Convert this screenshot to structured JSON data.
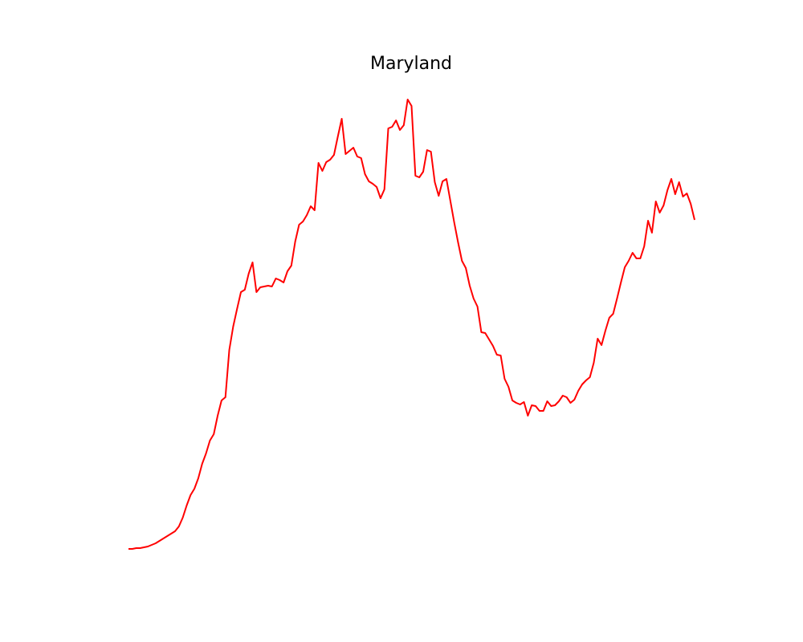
{
  "chart_data": {
    "type": "line",
    "title": "Maryland",
    "color": "#ff0000",
    "ylim": [
      0,
      608
    ],
    "values": [
      20,
      20,
      21,
      21,
      22,
      23,
      25,
      27,
      30,
      33,
      36,
      39,
      42,
      48,
      59,
      74,
      87,
      95,
      108,
      126,
      139,
      155,
      163,
      186,
      205,
      209,
      268,
      297,
      319,
      340,
      343,
      363,
      377,
      340,
      346,
      347,
      348,
      347,
      357,
      355,
      352,
      366,
      373,
      403,
      424,
      428,
      436,
      447,
      442,
      501,
      491,
      502,
      505,
      511,
      534,
      556,
      512,
      516,
      520,
      509,
      507,
      487,
      478,
      475,
      471,
      457,
      468,
      544,
      546,
      554,
      542,
      548,
      580,
      572,
      485,
      483,
      490,
      517,
      515,
      477,
      460,
      478,
      481,
      454,
      427,
      402,
      379,
      370,
      348,
      332,
      322,
      290,
      289,
      281,
      273,
      262,
      261,
      232,
      222,
      205,
      202,
      200,
      203,
      186,
      199,
      198,
      192,
      192,
      204,
      198,
      199,
      204,
      211,
      209,
      202,
      206,
      217,
      225,
      230,
      234,
      252,
      282,
      274,
      292,
      308,
      313,
      332,
      352,
      371,
      379,
      389,
      382,
      382,
      397,
      429,
      414,
      453,
      439,
      448,
      467,
      481,
      462,
      477,
      459,
      463,
      450,
      430
    ]
  }
}
